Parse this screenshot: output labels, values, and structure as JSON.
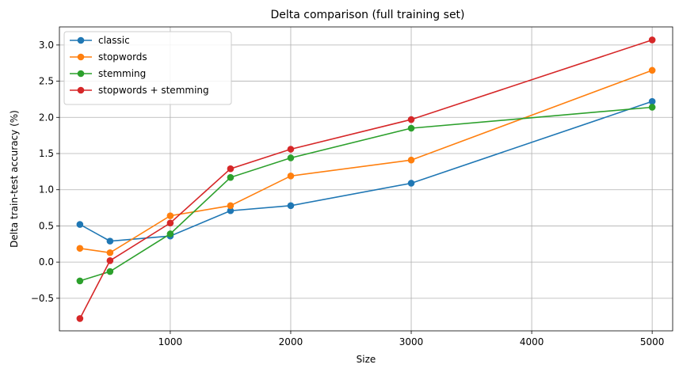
{
  "chart_data": {
    "type": "line",
    "title": "Delta comparison (full training set)",
    "xlabel": "Size",
    "ylabel": "Delta train-test accuracy (%)",
    "x": [
      250,
      500,
      1000,
      1500,
      2000,
      3000,
      5000
    ],
    "xlim": [
      80,
      5170
    ],
    "ylim": [
      -0.95,
      3.25
    ],
    "xticks": [
      1000,
      2000,
      3000,
      4000,
      5000
    ],
    "xtick_labels": [
      "1000",
      "2000",
      "3000",
      "4000",
      "5000"
    ],
    "yticks": [
      -0.5,
      0.0,
      0.5,
      1.0,
      1.5,
      2.0,
      2.5,
      3.0
    ],
    "ytick_labels": [
      "−0.5",
      "0.0",
      "0.5",
      "1.0",
      "1.5",
      "2.0",
      "2.5",
      "3.0"
    ],
    "grid": true,
    "legend_position": "top-left",
    "series": [
      {
        "name": "classic",
        "color": "#1f77b4",
        "values": [
          0.52,
          0.29,
          0.36,
          0.71,
          0.78,
          1.09,
          2.22
        ]
      },
      {
        "name": "stopwords",
        "color": "#ff7f0e",
        "values": [
          0.19,
          0.13,
          0.64,
          0.78,
          1.19,
          1.41,
          2.65
        ]
      },
      {
        "name": "stemming",
        "color": "#2ca02c",
        "values": [
          -0.26,
          -0.13,
          0.39,
          1.17,
          1.44,
          1.85,
          2.14
        ]
      },
      {
        "name": "stopwords + stemming",
        "color": "#d62728",
        "values": [
          -0.78,
          0.02,
          0.54,
          1.29,
          1.56,
          1.97,
          3.07
        ]
      }
    ]
  }
}
